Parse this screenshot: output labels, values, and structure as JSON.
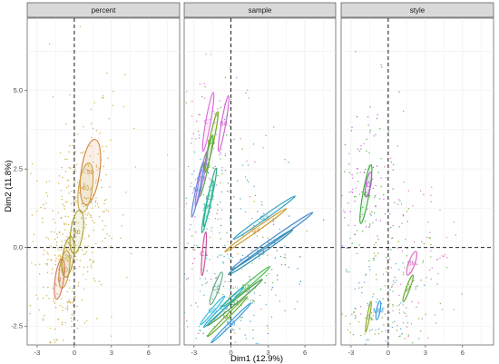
{
  "chart_data": {
    "type": "scatter",
    "title": "",
    "xlabel": "Dim1 (12.9%)",
    "ylabel": "Dim2 (11.8%)",
    "xlim": [
      -3.8,
      8.5
    ],
    "ylim": [
      -3.1,
      7.3
    ],
    "x_ticks": [
      -3,
      0,
      3,
      6
    ],
    "y_ticks": [
      -2.5,
      0.0,
      2.5,
      5.0
    ],
    "x_tick_labels": [
      "-3",
      "0",
      "3",
      "6"
    ],
    "y_tick_labels": [
      "-2.5",
      "0.0",
      "2.5",
      "5.0"
    ],
    "grid": true,
    "reference_lines": {
      "x": 0,
      "y": 0,
      "style": "dashed"
    },
    "facets": [
      {
        "label": "percent",
        "point_color": "#C9A227",
        "groups": [
          {
            "label": "50",
            "color": "#D2853C",
            "cx": 1.3,
            "cy": 2.4,
            "rx": 0.75,
            "ry": 1.05,
            "angle": 8
          },
          {
            "label": "40",
            "color": "#C8A445",
            "cx": 0.9,
            "cy": 1.9,
            "rx": 0.55,
            "ry": 0.8,
            "angle": 8
          },
          {
            "label": "30",
            "color": "#A8A232",
            "cx": 0.2,
            "cy": 0.5,
            "rx": 0.5,
            "ry": 0.7,
            "angle": 8
          },
          {
            "label": "20",
            "color": "#A6972A",
            "cx": -0.5,
            "cy": -0.3,
            "rx": 0.45,
            "ry": 0.65,
            "angle": 8
          },
          {
            "label": "10",
            "color": "#C79A30",
            "cx": -0.8,
            "cy": -0.7,
            "rx": 0.4,
            "ry": 0.6,
            "angle": 8
          },
          {
            "label": "0",
            "color": "#D2785C",
            "cx": -1.2,
            "cy": -1.0,
            "rx": 0.35,
            "ry": 0.65,
            "angle": 8
          }
        ]
      },
      {
        "label": "sample",
        "point_color": "#9bb",
        "groups": [
          {
            "label": "C7",
            "color": "#E066E0",
            "cx": -1.85,
            "cy": 4.0,
            "rx": 0.2,
            "ry": 0.95,
            "angle": 10
          },
          {
            "label": "B8",
            "color": "#CC66CC",
            "cx": -0.6,
            "cy": 3.95,
            "rx": 0.18,
            "ry": 0.9,
            "angle": 10
          },
          {
            "label": "B4",
            "color": "#77AA22",
            "cx": -1.6,
            "cy": 3.35,
            "rx": 0.18,
            "ry": 1.0,
            "angle": 12
          },
          {
            "label": "B5",
            "color": "#55AA44",
            "cx": -2.0,
            "cy": 2.6,
            "rx": 0.16,
            "ry": 1.0,
            "angle": 12
          },
          {
            "label": "C9",
            "color": "#AA77DD",
            "cx": -2.4,
            "cy": 2.2,
            "rx": 0.16,
            "ry": 0.9,
            "angle": 12
          },
          {
            "label": "M4",
            "color": "#6688DD",
            "cx": -2.7,
            "cy": 1.85,
            "rx": 0.16,
            "ry": 0.9,
            "angle": 12
          },
          {
            "label": "C2",
            "color": "#33AA88",
            "cx": -1.7,
            "cy": 1.6,
            "rx": 0.16,
            "ry": 0.95,
            "angle": 12
          },
          {
            "label": "D5",
            "color": "#22BB99",
            "cx": -1.9,
            "cy": 1.3,
            "rx": 0.16,
            "ry": 0.85,
            "angle": 12
          },
          {
            "label": "C1",
            "color": "#CC5599",
            "cx": -2.2,
            "cy": -0.2,
            "rx": 0.14,
            "ry": 0.7,
            "angle": 5
          },
          {
            "label": "G3",
            "color": "#33A0C0",
            "cx": 2.7,
            "cy": 0.95,
            "rx": 0.16,
            "ry": 1.2,
            "angle": 55
          },
          {
            "label": "G4",
            "color": "#CC9933",
            "cx": 2.0,
            "cy": 0.55,
            "rx": 0.15,
            "ry": 1.2,
            "angle": 55
          },
          {
            "label": "C4",
            "color": "#4488CC",
            "cx": 3.3,
            "cy": 0.2,
            "rx": 0.18,
            "ry": 1.6,
            "angle": 55
          },
          {
            "label": "C3",
            "color": "#2288AA",
            "cx": 2.4,
            "cy": -0.15,
            "rx": 0.16,
            "ry": 1.25,
            "angle": 55
          },
          {
            "label": "C8",
            "color": "#66AA88",
            "cx": -1.2,
            "cy": -1.3,
            "rx": 0.22,
            "ry": 0.55,
            "angle": 20
          },
          {
            "label": "D3",
            "color": "#55BB55",
            "cx": 1.2,
            "cy": -1.25,
            "rx": 0.16,
            "ry": 1.0,
            "angle": 50
          },
          {
            "label": "G1",
            "color": "#449944",
            "cx": 0.3,
            "cy": -1.75,
            "rx": 0.15,
            "ry": 1.15,
            "angle": 50
          },
          {
            "label": "C5",
            "color": "#22AACC",
            "cx": -0.6,
            "cy": -1.9,
            "rx": 0.14,
            "ry": 0.9,
            "angle": 45
          },
          {
            "label": "G5",
            "color": "#33BBDD",
            "cx": -1.5,
            "cy": -2.0,
            "rx": 0.14,
            "ry": 0.6,
            "angle": 40
          },
          {
            "label": "M2",
            "color": "#66AA33",
            "cx": -0.3,
            "cy": -2.2,
            "rx": 0.13,
            "ry": 0.9,
            "angle": 45
          },
          {
            "label": "M3",
            "color": "#3399DD",
            "cx": 0.0,
            "cy": -2.4,
            "rx": 0.12,
            "ry": 0.9,
            "angle": 45
          }
        ]
      },
      {
        "label": "style",
        "point_color": "#33BB33",
        "groups": [
          {
            "label": "G",
            "color": "#33AA33",
            "cx": -1.8,
            "cy": 1.7,
            "rx": 0.25,
            "ry": 0.95,
            "angle": 10
          },
          {
            "label": "D",
            "color": "#BB55DD",
            "cx": -1.6,
            "cy": 2.0,
            "rx": 0.2,
            "ry": 0.4,
            "angle": 10
          },
          {
            "label": "SM",
            "color": "#DD66BB",
            "cx": 1.9,
            "cy": -0.5,
            "rx": 0.25,
            "ry": 0.4,
            "angle": 20
          },
          {
            "label": "M",
            "color": "#66AA33",
            "cx": 1.6,
            "cy": -1.3,
            "rx": 0.15,
            "ry": 0.45,
            "angle": 20
          },
          {
            "label": "S",
            "color": "#88AA22",
            "cx": -1.6,
            "cy": -2.2,
            "rx": 0.1,
            "ry": 0.5,
            "angle": 10
          },
          {
            "label": "MM",
            "color": "#3399DD",
            "cx": -0.8,
            "cy": -2.0,
            "rx": 0.15,
            "ry": 0.3,
            "angle": 10
          }
        ]
      }
    ]
  }
}
